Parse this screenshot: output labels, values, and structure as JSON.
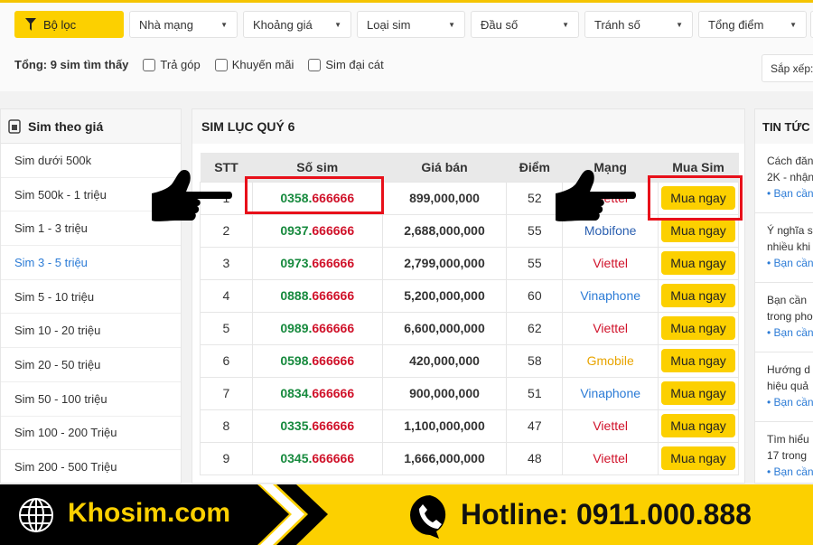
{
  "filters": {
    "filter_label": "Bộ lọc",
    "dropdowns": [
      "Nhà mạng",
      "Khoảng giá",
      "Loại sim",
      "Đầu số",
      "Tránh số",
      "Tổng điểm"
    ]
  },
  "summary": {
    "total": "Tổng: 9 sim tìm thấy",
    "checkboxes": [
      "Trả góp",
      "Khuyến mãi",
      "Sim đại cát"
    ],
    "sort_label": "Sắp xếp:"
  },
  "sidebar": {
    "title": "Sim theo giá",
    "items": [
      "Sim dưới 500k",
      "Sim 500k - 1 triệu",
      "Sim 1 - 3 triệu",
      "Sim 3 - 5 triệu",
      "Sim 5 - 10 triệu",
      "Sim 10 - 20 triệu",
      "Sim 20 - 50 triệu",
      "Sim 50 - 100 triệu",
      "Sim 100 - 200 Triệu",
      "Sim 200 - 500 Triệu"
    ],
    "active": "Sim 3 - 5 triệu"
  },
  "main": {
    "title": "SIM LỤC QUÝ 6",
    "headers": [
      "STT",
      "Số sim",
      "Giá bán",
      "Điểm",
      "Mạng",
      "Mua Sim"
    ],
    "rows": [
      {
        "stt": "1",
        "prefix": "0358.",
        "suffix": "666666",
        "price": "899,000,000",
        "score": "52",
        "network": "Viettel",
        "buy": "Mua ngay"
      },
      {
        "stt": "2",
        "prefix": "0937.",
        "suffix": "666666",
        "price": "2,688,000,000",
        "score": "55",
        "network": "Mobifone",
        "buy": "Mua ngay"
      },
      {
        "stt": "3",
        "prefix": "0973.",
        "suffix": "666666",
        "price": "2,799,000,000",
        "score": "55",
        "network": "Viettel",
        "buy": "Mua ngay"
      },
      {
        "stt": "4",
        "prefix": "0888.",
        "suffix": "666666",
        "price": "5,200,000,000",
        "score": "60",
        "network": "Vinaphone",
        "buy": "Mua ngay"
      },
      {
        "stt": "5",
        "prefix": "0989.",
        "suffix": "666666",
        "price": "6,600,000,000",
        "score": "62",
        "network": "Viettel",
        "buy": "Mua ngay"
      },
      {
        "stt": "6",
        "prefix": "0598.",
        "suffix": "666666",
        "price": "420,000,000",
        "score": "58",
        "network": "Gmobile",
        "buy": "Mua ngay"
      },
      {
        "stt": "7",
        "prefix": "0834.",
        "suffix": "666666",
        "price": "900,000,000",
        "score": "51",
        "network": "Vinaphone",
        "buy": "Mua ngay"
      },
      {
        "stt": "8",
        "prefix": "0335.",
        "suffix": "666666",
        "price": "1,100,000,000",
        "score": "47",
        "network": "Viettel",
        "buy": "Mua ngay"
      },
      {
        "stt": "9",
        "prefix": "0345.",
        "suffix": "666666",
        "price": "1,666,000,000",
        "score": "48",
        "network": "Viettel",
        "buy": "Mua ngay"
      }
    ]
  },
  "network_colors": {
    "Viettel": "#d0122a",
    "Mobifone": "#2a5fb0",
    "Vinaphone": "#2b7bd6",
    "Gmobile": "#e8a400"
  },
  "news": {
    "title": "TIN TỨC",
    "items": [
      {
        "line1": "Cách đăn",
        "line2": "2K - nhận",
        "link": "Bạn cần"
      },
      {
        "line1": "Ý nghĩa s",
        "line2": "nhiều khi",
        "link": "Bạn cần"
      },
      {
        "line1": "Bạn cần",
        "line2": "trong pho",
        "link": "Bạn cần"
      },
      {
        "line1": "Hướng d",
        "line2": "hiệu quả",
        "link": "Bạn cần"
      },
      {
        "line1": "Tìm hiểu",
        "line2": "17 trong",
        "link": "Bạn cần"
      }
    ]
  },
  "footer": {
    "brand": "Khosim.com",
    "hotline": "Hotline: 0911.000.888"
  }
}
